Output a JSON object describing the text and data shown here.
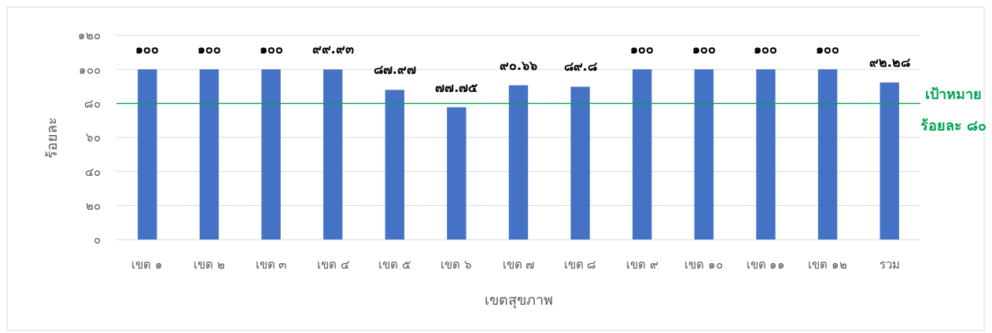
{
  "chart_data": {
    "type": "bar",
    "xlabel": "เขตสุขภาพ",
    "ylabel": "ร้อยละ",
    "categories": [
      "เขต ๑",
      "เขต ๒",
      "เขต ๓",
      "เขต ๔",
      "เขต ๕",
      "เขต ๖",
      "เขต ๗",
      "เขต ๘",
      "เขต ๙",
      "เขต ๑๐",
      "เขต ๑๑",
      "เขต ๑๒",
      "รวม"
    ],
    "values": [
      100,
      100,
      100,
      99.93,
      87.97,
      77.75,
      90.66,
      89.8,
      100,
      100,
      100,
      100,
      92.28
    ],
    "value_labels": [
      "๑๐๐",
      "๑๐๐",
      "๑๐๐",
      "๙๙.๙๓",
      "๘๗.๙๗",
      "๗๗.๗๕",
      "๙๐.๖๖",
      "๘๙.๘",
      "๑๐๐",
      "๑๐๐",
      "๑๐๐",
      "๑๐๐",
      "๙๒.๒๘"
    ],
    "color": "#4472c4",
    "ylim": [
      0,
      120
    ],
    "yticks": [
      {
        "value": 0,
        "label": "๐"
      },
      {
        "value": 20,
        "label": "๒๐"
      },
      {
        "value": 40,
        "label": "๔๐"
      },
      {
        "value": 60,
        "label": "๖๐"
      },
      {
        "value": 80,
        "label": "๘๐"
      },
      {
        "value": 100,
        "label": "๑๐๐"
      },
      {
        "value": 120,
        "label": "๑๒๐"
      }
    ],
    "grid": "y",
    "ref_lines": [
      {
        "axis": "y",
        "value": 80,
        "label": "เป้าหมาย\nร้อยละ ๘๐",
        "color": "#00a550"
      }
    ]
  }
}
